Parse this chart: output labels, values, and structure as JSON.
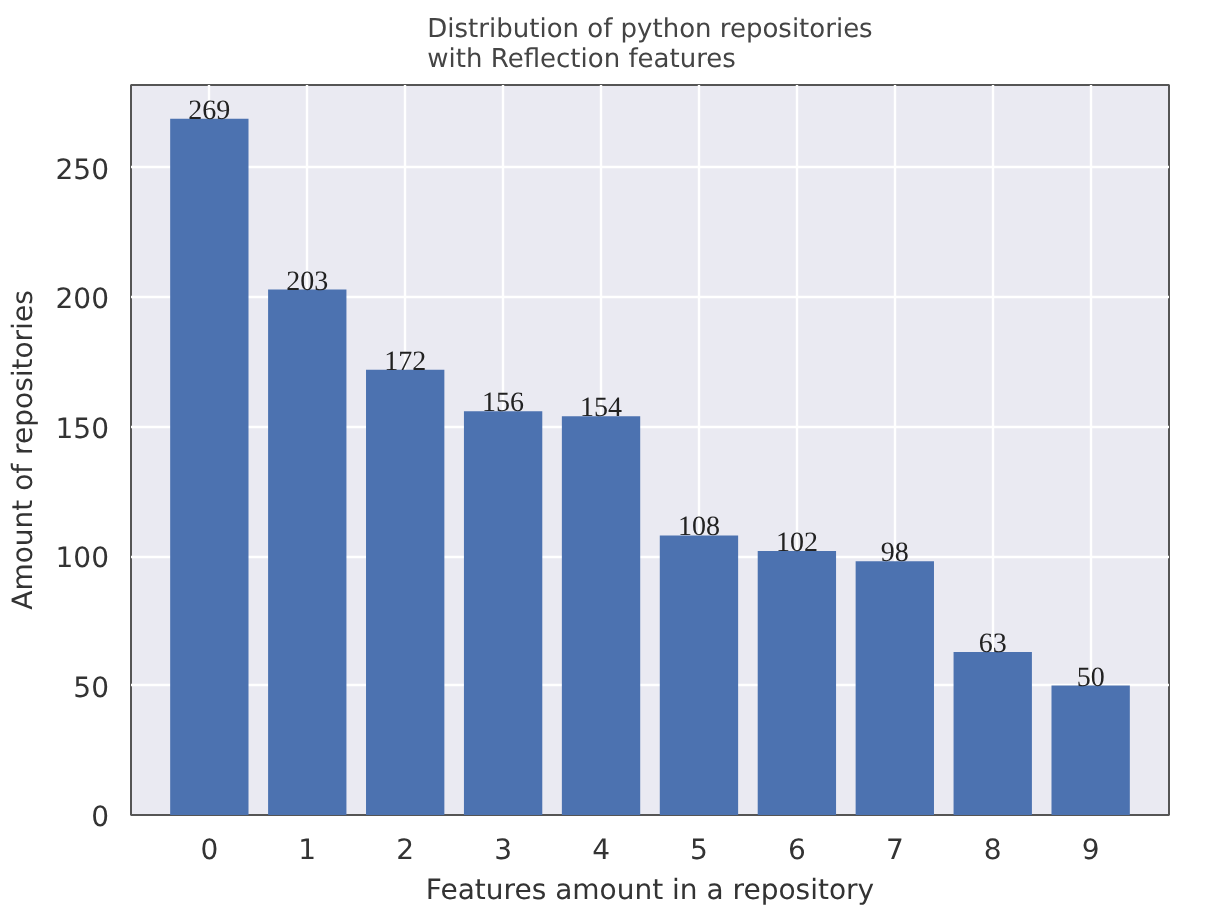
{
  "chart_data": {
    "type": "bar",
    "title": "Distribution of python repositories\nwith Reflection features",
    "xlabel": "Features amount in a repository",
    "ylabel": "Amount of repositories",
    "categories": [
      "0",
      "1",
      "2",
      "3",
      "4",
      "5",
      "6",
      "7",
      "8",
      "9"
    ],
    "values": [
      269,
      203,
      172,
      156,
      154,
      108,
      102,
      98,
      63,
      50
    ],
    "color": "#4c72b0",
    "ylim": [
      0,
      282
    ],
    "yticks": [
      0,
      50,
      100,
      150,
      200,
      250
    ],
    "grid": true,
    "data_labels": true
  }
}
